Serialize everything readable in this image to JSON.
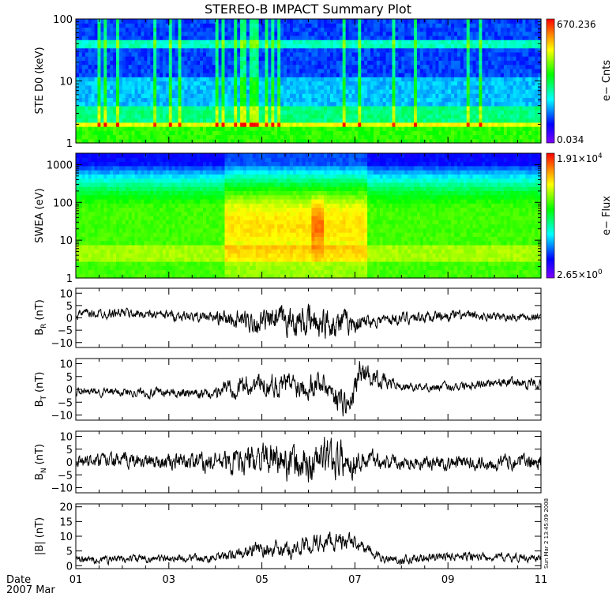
{
  "chart_data": {
    "title": "STEREO-B IMPACT Summary Plot",
    "time_axis": {
      "label_line1": "Date",
      "label_line2": "2007 Mar",
      "ticks": [
        "01",
        "03",
        "05",
        "07",
        "09",
        "11"
      ],
      "range_days": [
        1,
        11
      ]
    },
    "panels": [
      {
        "type": "heatmap",
        "ylabel": "STE D0 (keV)",
        "yscale": "log",
        "ylim": [
          1,
          100
        ],
        "yticks": [
          "1",
          "10",
          "100"
        ],
        "colorbar": {
          "label": "e− Cnts",
          "max": "670.236",
          "min": "0.034"
        }
      },
      {
        "type": "heatmap",
        "ylabel": "SWEA (eV)",
        "yscale": "log",
        "ylim": [
          1,
          2000
        ],
        "yticks": [
          "1",
          "10",
          "100",
          "1000"
        ],
        "colorbar": {
          "label": "e− Flux",
          "max_mantissa": "1.91×10",
          "max_exp": "4",
          "min_mantissa": "2.65×10",
          "min_exp": "0"
        }
      },
      {
        "type": "line",
        "ylabel_main": "B",
        "ylabel_sub": "R",
        "ylabel_unit": "(nT)",
        "ylim": [
          -12,
          12
        ],
        "yticks": [
          "−10",
          "−5",
          "0",
          "5",
          "10"
        ],
        "tick_values": [
          -10,
          -5,
          0,
          5,
          10
        ],
        "segments": [
          [
            1,
            1.5
          ],
          [
            2,
            2
          ],
          [
            3,
            1
          ],
          [
            4,
            0
          ],
          [
            4.5,
            -1
          ],
          [
            5,
            -2
          ],
          [
            5.5,
            -1
          ],
          [
            6,
            -2
          ],
          [
            6.5,
            -2
          ],
          [
            7,
            -2
          ],
          [
            7.5,
            -1
          ],
          [
            8,
            0
          ],
          [
            9,
            1
          ],
          [
            10,
            0.5
          ],
          [
            11,
            0.5
          ]
        ],
        "amp": [
          [
            1,
            1.5
          ],
          [
            3.8,
            1.5
          ],
          [
            4.4,
            3
          ],
          [
            6.2,
            5
          ],
          [
            6.8,
            4
          ],
          [
            7.3,
            2
          ],
          [
            11,
            1.2
          ]
        ]
      },
      {
        "type": "line",
        "ylabel_main": "B",
        "ylabel_sub": "T",
        "ylabel_unit": "(nT)",
        "ylim": [
          -12,
          12
        ],
        "yticks": [
          "−10",
          "−5",
          "0",
          "5",
          "10"
        ],
        "tick_values": [
          -10,
          -5,
          0,
          5,
          10
        ],
        "segments": [
          [
            1,
            -1
          ],
          [
            2,
            -1
          ],
          [
            3,
            -1.5
          ],
          [
            4,
            -2
          ],
          [
            4.2,
            1
          ],
          [
            5,
            2
          ],
          [
            5.5,
            2
          ],
          [
            6,
            2
          ],
          [
            6.3,
            3
          ],
          [
            6.6,
            -2
          ],
          [
            6.9,
            -7
          ],
          [
            7.1,
            7
          ],
          [
            7.4,
            5
          ],
          [
            8,
            1
          ],
          [
            9,
            1
          ],
          [
            10,
            3
          ],
          [
            11,
            2
          ]
        ],
        "amp": [
          [
            1,
            1.2
          ],
          [
            4,
            1.5
          ],
          [
            4.3,
            3
          ],
          [
            6.0,
            4
          ],
          [
            6.9,
            4
          ],
          [
            7.5,
            2.5
          ],
          [
            8,
            1.2
          ],
          [
            11,
            1.5
          ]
        ]
      },
      {
        "type": "line",
        "ylabel_main": "B",
        "ylabel_sub": "N",
        "ylabel_unit": "(nT)",
        "ylim": [
          -12,
          12
        ],
        "yticks": [
          "−10",
          "−5",
          "0",
          "5",
          "10"
        ],
        "tick_values": [
          -10,
          -5,
          0,
          5,
          10
        ],
        "segments": [
          [
            1,
            0
          ],
          [
            2,
            0.5
          ],
          [
            3,
            0
          ],
          [
            4,
            0
          ],
          [
            5,
            1
          ],
          [
            5.5,
            0
          ],
          [
            6,
            -1
          ],
          [
            6.4,
            2
          ],
          [
            6.8,
            0
          ],
          [
            7.3,
            1
          ],
          [
            8,
            0
          ],
          [
            9,
            -0.5
          ],
          [
            10,
            0
          ],
          [
            11,
            0
          ]
        ],
        "amp": [
          [
            1,
            2
          ],
          [
            3.5,
            2.5
          ],
          [
            4.8,
            4.5
          ],
          [
            6.5,
            6
          ],
          [
            7.3,
            3
          ],
          [
            8,
            2
          ],
          [
            11,
            2.5
          ]
        ]
      },
      {
        "type": "line",
        "ylabel_main": "|B| (nT)",
        "ylim": [
          -1,
          21
        ],
        "yticks": [
          "0",
          "5",
          "10",
          "15",
          "20"
        ],
        "tick_values": [
          0,
          5,
          10,
          15,
          20
        ],
        "segments": [
          [
            1,
            2
          ],
          [
            3,
            2.5
          ],
          [
            4,
            2.5
          ],
          [
            4.5,
            4
          ],
          [
            5,
            6
          ],
          [
            5.5,
            5
          ],
          [
            6,
            7
          ],
          [
            6.5,
            8
          ],
          [
            7,
            8
          ],
          [
            7.5,
            3
          ],
          [
            8,
            2
          ],
          [
            9,
            3
          ],
          [
            10,
            3
          ],
          [
            11,
            2.5
          ]
        ],
        "amp": [
          [
            1,
            1
          ],
          [
            4,
            1
          ],
          [
            5,
            2
          ],
          [
            6.5,
            2.5
          ],
          [
            7.5,
            1.2
          ],
          [
            11,
            1
          ]
        ]
      }
    ],
    "timestamp_note": "Sun Mar  2 13:45:09 2008"
  }
}
